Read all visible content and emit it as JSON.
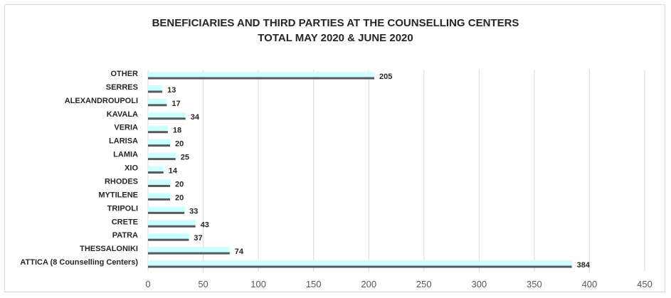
{
  "chart_data": {
    "type": "bar",
    "orientation": "horizontal",
    "title_lines": [
      "BENEFICIARIES AND THIRD PARTIES AT THE COUNSELLING CENTERS",
      "TOTAL MAY 2020 & JUNE 2020"
    ],
    "categories": [
      "OTHER",
      "SERRES",
      "ALEXANDROUPOLI",
      "KAVALA",
      "VERIA",
      "LARISA",
      "LAMIA",
      "XIO",
      "RHODES",
      "MYTILENE",
      "TRIPOLI",
      "CRETE",
      "PATRA",
      "THESSALONIKI",
      "ATTICA (8 Counselling Centers)"
    ],
    "series": [
      {
        "values": [
          205,
          13,
          17,
          34,
          18,
          20,
          25,
          14,
          20,
          20,
          33,
          43,
          37,
          74,
          384
        ],
        "color": "#ccffff"
      },
      {
        "values": [
          205,
          13,
          17,
          34,
          18,
          20,
          25,
          14,
          20,
          20,
          33,
          43,
          37,
          74,
          384
        ],
        "color": "#595959"
      }
    ],
    "data_labels": [
      "205",
      "13",
      "17",
      "34",
      "18",
      "20",
      "25",
      "14",
      "20",
      "20",
      "33",
      "43",
      "37",
      "74",
      "384"
    ],
    "x_ticks": [
      "0",
      "50",
      "100",
      "150",
      "200",
      "250",
      "300",
      "350",
      "400",
      "450"
    ],
    "xlim": [
      0,
      450
    ],
    "grid": "vertical",
    "legend": "none"
  }
}
